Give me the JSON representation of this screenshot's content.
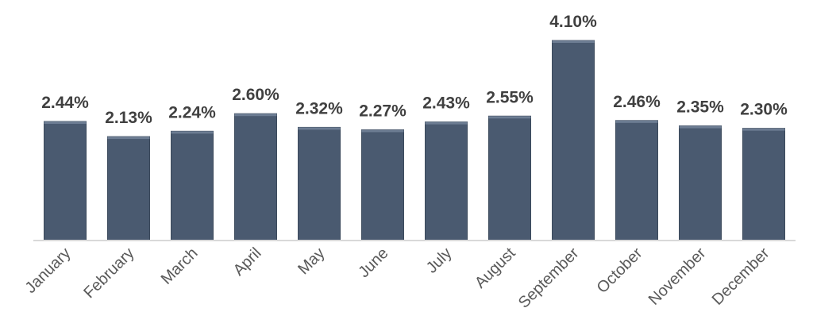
{
  "chart_data": {
    "type": "bar",
    "categories": [
      "January",
      "February",
      "March",
      "April",
      "May",
      "June",
      "July",
      "August",
      "September",
      "October",
      "November",
      "December"
    ],
    "values": [
      2.44,
      2.13,
      2.24,
      2.6,
      2.32,
      2.27,
      2.43,
      2.55,
      4.1,
      2.46,
      2.35,
      2.3
    ],
    "data_labels": [
      "2.44%",
      "2.13%",
      "2.24%",
      "2.60%",
      "2.32%",
      "2.27%",
      "2.43%",
      "2.55%",
      "4.10%",
      "2.46%",
      "2.35%",
      "2.30%"
    ],
    "title": "",
    "xlabel": "",
    "ylabel": "",
    "ylim": [
      0,
      4.1
    ],
    "grid": false,
    "legend": "none",
    "colors": {
      "bar": "#4a5a70",
      "axis": "#d9d9d9",
      "data_label": "#404040",
      "tick_label": "#595959"
    }
  }
}
